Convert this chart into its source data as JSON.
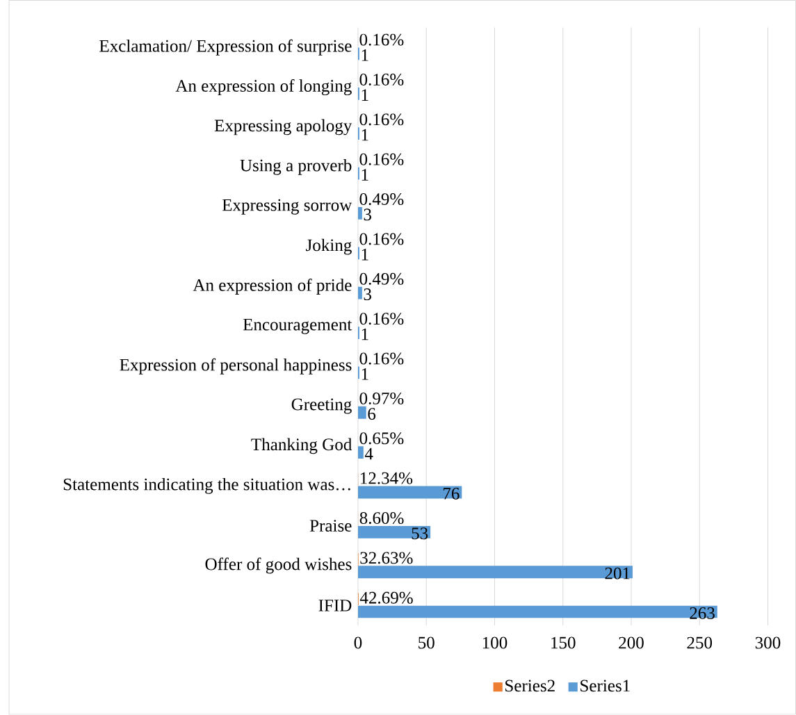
{
  "chart_data": {
    "type": "bar",
    "orientation": "horizontal",
    "categories": [
      "Exclamation/ Expression of surprise",
      "An expression of longing",
      "Expressing apology",
      "Using a proverb",
      "Expressing sorrow",
      "Joking",
      "An expression of pride",
      "Encouragement",
      "Expression of personal happiness",
      "Greeting",
      "Thanking God",
      "Statements indicating the situation was…",
      "Praise",
      "Offer of good wishes",
      "IFID"
    ],
    "series": [
      {
        "name": "Series2",
        "color": "#ed7d31",
        "values": [
          0.0016,
          0.0016,
          0.0016,
          0.0016,
          0.0049,
          0.0016,
          0.0049,
          0.0016,
          0.0016,
          0.0097,
          0.0065,
          0.1234,
          0.086,
          0.3263,
          0.4269
        ],
        "value_labels": [
          "0.16%",
          "0.16%",
          "0.16%",
          "0.16%",
          "0.49%",
          "0.16%",
          "0.49%",
          "0.16%",
          "0.16%",
          "0.97%",
          "0.65%",
          "12.34%",
          "8.60%",
          "32.63%",
          "42.69%"
        ]
      },
      {
        "name": "Series1",
        "color": "#5b9bd5",
        "values": [
          1,
          1,
          1,
          1,
          3,
          1,
          3,
          1,
          1,
          6,
          4,
          76,
          53,
          201,
          263
        ],
        "data_labels": true
      }
    ],
    "xlim": [
      0,
      300
    ],
    "xticks": [
      0,
      50,
      100,
      150,
      200,
      250,
      300
    ],
    "grid": "x",
    "legend": "bottom"
  }
}
